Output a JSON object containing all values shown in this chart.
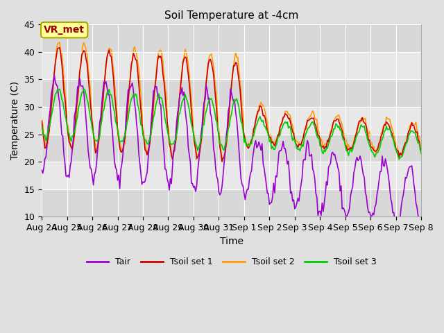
{
  "title": "Soil Temperature at -4cm",
  "xlabel": "Time",
  "ylabel": "Temperature (C)",
  "ylim": [
    10,
    45
  ],
  "colors": {
    "Tair": "#9900cc",
    "Tsoil1": "#cc0000",
    "Tsoil2": "#ff9900",
    "Tsoil3": "#00cc00"
  },
  "legend_labels": [
    "Tair",
    "Tsoil set 1",
    "Tsoil set 2",
    "Tsoil set 3"
  ],
  "annotation_text": "VR_met",
  "annotation_color": "#990000",
  "annotation_bg": "#ffff99",
  "x_tick_labels": [
    "Aug 24",
    "Aug 25",
    "Aug 26",
    "Aug 27",
    "Aug 28",
    "Aug 29",
    "Aug 30",
    "Aug 31",
    "Sep 1",
    "Sep 2",
    "Sep 3",
    "Sep 4",
    "Sep 5",
    "Sep 6",
    "Sep 7",
    "Sep 8"
  ],
  "grid_color": "#ffffff",
  "line_width": 1.2,
  "band_colors": [
    "#d8d8d8",
    "#e8e8e8"
  ],
  "fig_bg": "#e0e0e0"
}
